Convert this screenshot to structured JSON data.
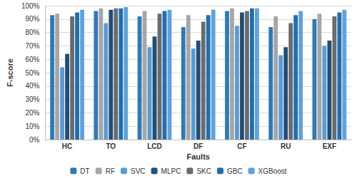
{
  "chart_data": {
    "type": "bar",
    "x_label": "Faults",
    "y_label": "F-score",
    "categories": [
      "HC",
      "TO",
      "LCD",
      "DF",
      "CF",
      "RU",
      "EXF"
    ],
    "series": [
      {
        "name": "DT",
        "color": "#2f7ab9",
        "values": [
          93,
          96,
          92,
          84,
          96,
          84,
          90
        ]
      },
      {
        "name": "RF",
        "color": "#a6a6a6",
        "values": [
          94,
          98,
          96,
          93,
          98,
          92,
          94
        ]
      },
      {
        "name": "SVC",
        "color": "#5b9bd5",
        "values": [
          54,
          87,
          69,
          68,
          85,
          63,
          70
        ]
      },
      {
        "name": "MLPC",
        "color": "#1f4e79",
        "values": [
          64,
          97,
          77,
          74,
          95,
          69,
          74
        ]
      },
      {
        "name": "SKC",
        "color": "#6b6b6b",
        "values": [
          92,
          98,
          94,
          88,
          96,
          87,
          92
        ]
      },
      {
        "name": "GBC",
        "color": "#1f6fb0",
        "values": [
          95,
          98,
          96,
          93,
          98,
          93,
          95
        ]
      },
      {
        "name": "XGBoost",
        "color": "#5fa2dd",
        "values": [
          97,
          99,
          97,
          97,
          98,
          96,
          97
        ]
      }
    ],
    "ylim": [
      0,
      100
    ],
    "yticks": [
      {
        "value": 0,
        "label": "0%"
      },
      {
        "value": 10,
        "label": "10%"
      },
      {
        "value": 20,
        "label": "20%"
      },
      {
        "value": 30,
        "label": "30%"
      },
      {
        "value": 40,
        "label": "40%"
      },
      {
        "value": 50,
        "label": "50%"
      },
      {
        "value": 60,
        "label": "60%"
      },
      {
        "value": 70,
        "label": "70%"
      },
      {
        "value": 80,
        "label": "80%"
      },
      {
        "value": 90,
        "label": "90%"
      },
      {
        "value": 100,
        "label": "100%"
      }
    ],
    "grid": true,
    "legend": "bottom"
  }
}
